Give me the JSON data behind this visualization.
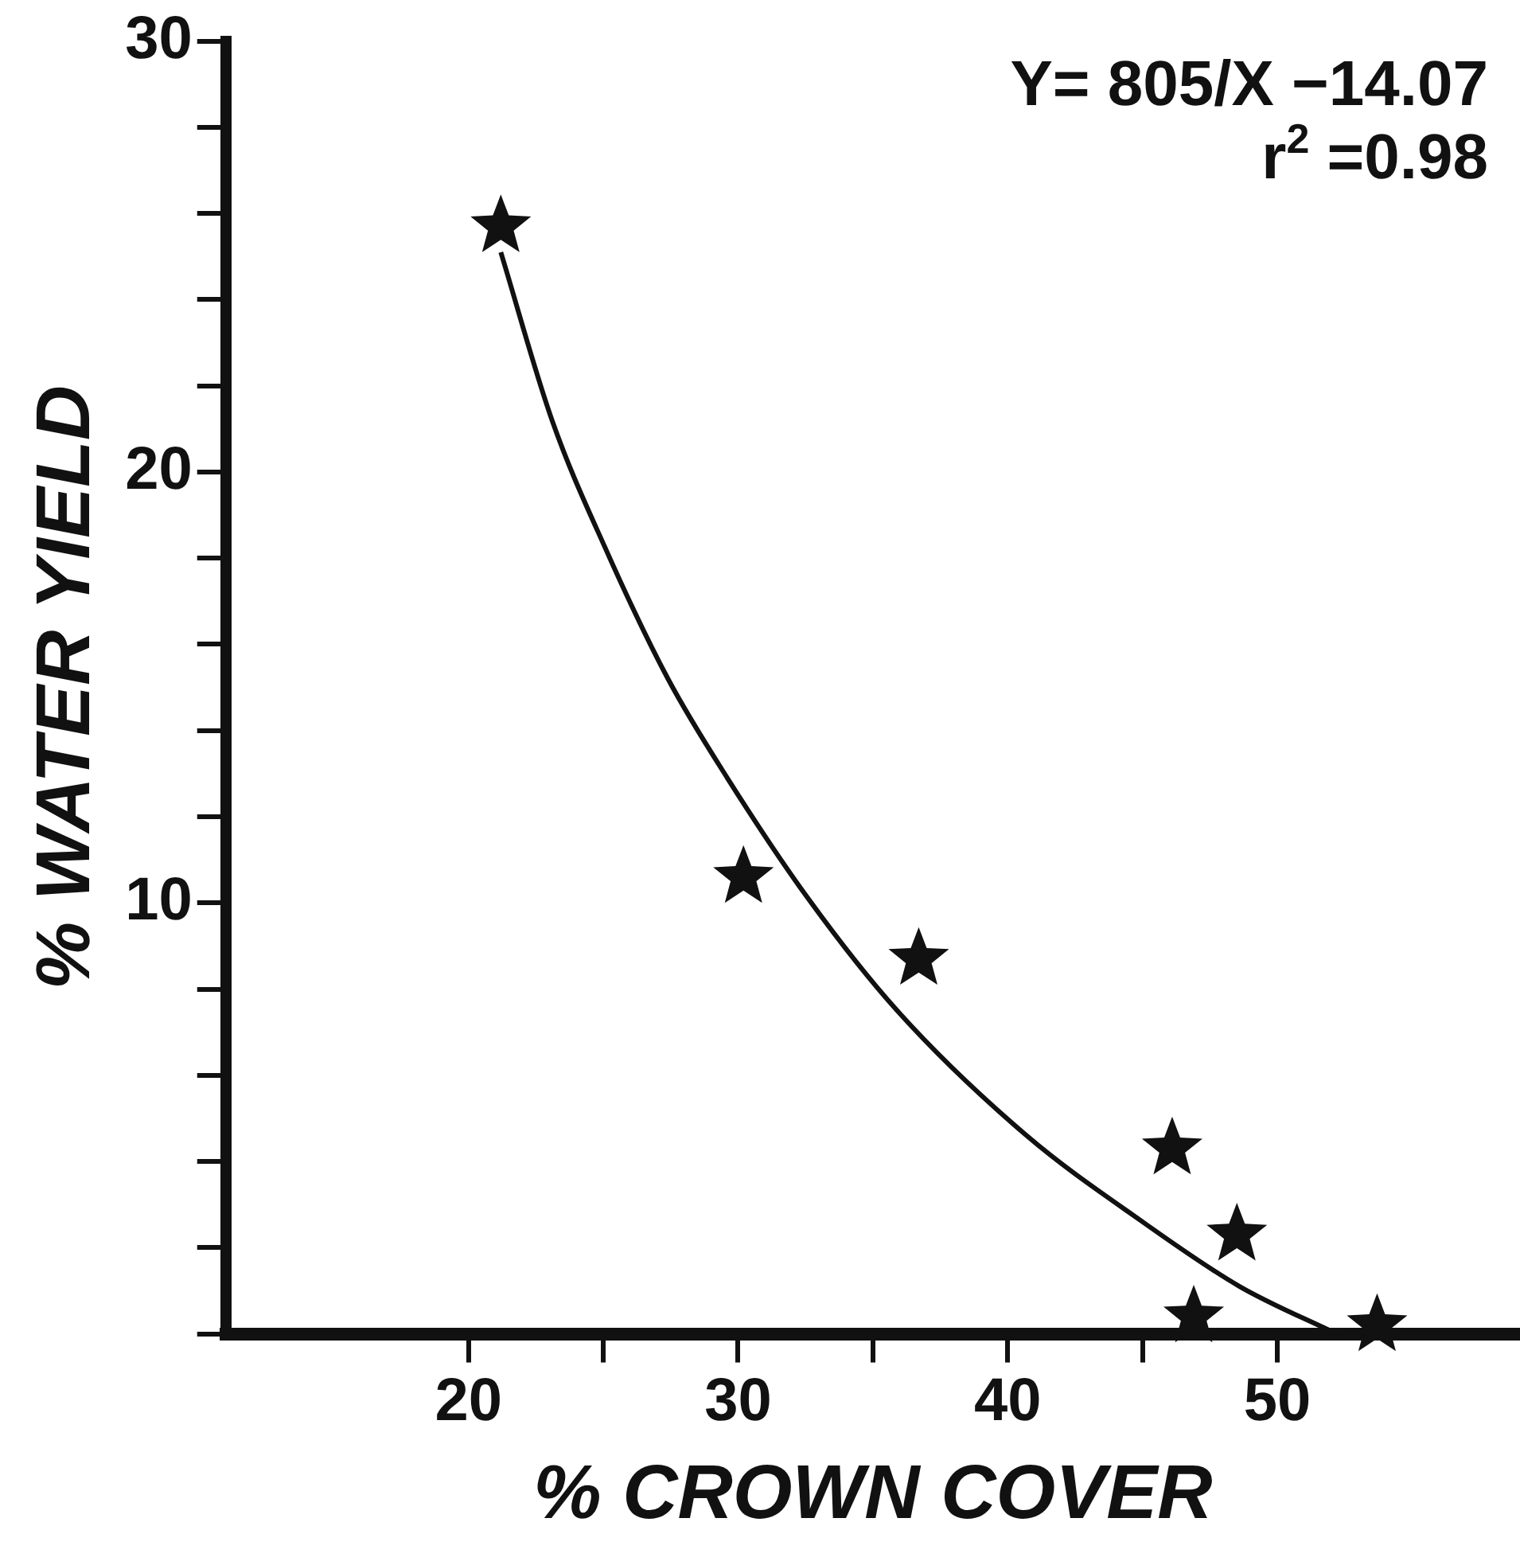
{
  "chart_data": {
    "type": "scatter",
    "xlabel": "% CROWN COVER",
    "ylabel": "% WATER YIELD",
    "xlim": [
      11,
      59
    ],
    "ylim": [
      0,
      30
    ],
    "xticks": [
      20,
      {
        "value": 25,
        "label": null
      },
      30,
      {
        "value": 35,
        "label": null
      },
      40,
      {
        "value": 45,
        "label": null
      },
      50
    ],
    "yticks": [
      {
        "value": 0,
        "label": null
      },
      {
        "value": 2,
        "label": null
      },
      {
        "value": 4,
        "label": null
      },
      {
        "value": 6,
        "label": null
      },
      {
        "value": 8,
        "label": null
      },
      10,
      {
        "value": 12,
        "label": null
      },
      {
        "value": 14,
        "label": null
      },
      {
        "value": 16,
        "label": null
      },
      {
        "value": 18,
        "label": null
      },
      20,
      {
        "value": 22,
        "label": null
      },
      {
        "value": 24,
        "label": null
      },
      {
        "value": 26,
        "label": null
      },
      {
        "value": 28,
        "label": null
      },
      30
    ],
    "grid": false,
    "legend": false,
    "marker": "star",
    "annotations": [
      "Y= 805/X −14.07",
      "r$^{2}$ =0.98"
    ],
    "series": [
      {
        "color": "#111111",
        "x": [
          21.2,
          30.2,
          36.7,
          46.1,
          48.5,
          46.9,
          53.7
        ],
        "values": [
          25.7,
          10.6,
          8.7,
          4.3,
          2.3,
          0.4,
          0.2
        ]
      },
      {
        "type": "line",
        "color": "#111111",
        "marker": "none",
        "line_style": "solid",
        "x": [
          21.2,
          23.1,
          25.1,
          27.4,
          29.6,
          32.6,
          35.9,
          40.7,
          45.0,
          48.6,
          52.2
        ],
        "values": [
          25.1,
          21.2,
          18.2,
          15.2,
          12.9,
          10.1,
          7.5,
          4.6,
          2.6,
          1.1,
          0
        ]
      }
    ]
  }
}
